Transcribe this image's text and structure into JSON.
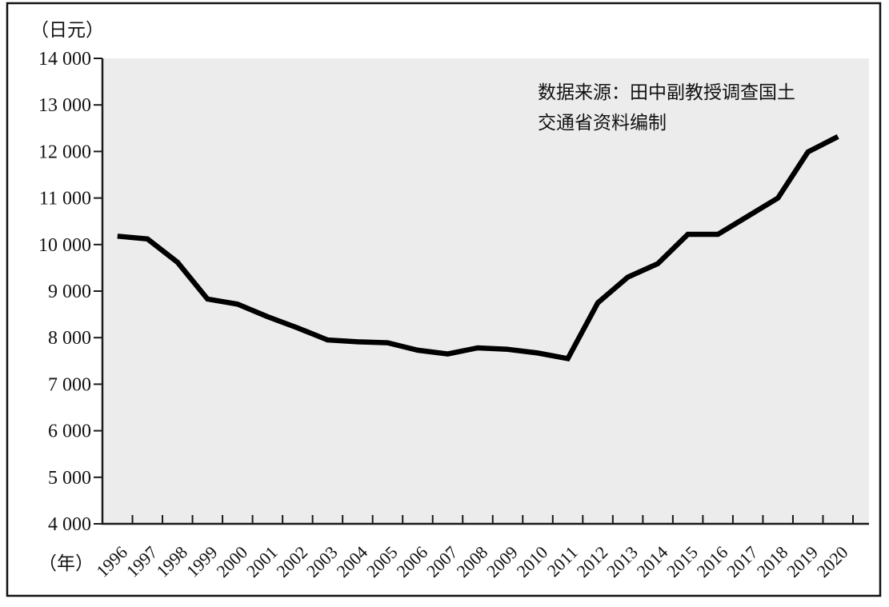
{
  "chart_data": {
    "type": "line",
    "title": "",
    "y_unit_label": "（日元）",
    "x_unit_label": "（年）",
    "annotation": {
      "line1": "数据来源：田中副教授调查国土",
      "line2": "交通省资料编制"
    },
    "categories": [
      "1996",
      "1997",
      "1998",
      "1999",
      "2000",
      "2001",
      "2002",
      "2003",
      "2004",
      "2005",
      "2006",
      "2007",
      "2008",
      "2009",
      "2010",
      "2011",
      "2012",
      "2013",
      "2014",
      "2015",
      "2016",
      "2017",
      "2018",
      "2019",
      "2020"
    ],
    "series": [
      {
        "name": "land-price-line",
        "values": [
          10180,
          10120,
          9620,
          8830,
          8720,
          8450,
          8210,
          7950,
          7910,
          7890,
          7730,
          7650,
          7780,
          7750,
          7670,
          7550,
          8750,
          9300,
          9590,
          10220,
          10220,
          10610,
          11000,
          11990,
          12320
        ]
      }
    ],
    "ylim": [
      4000,
      14000
    ],
    "y_ticks": [
      14000,
      13000,
      12000,
      11000,
      10000,
      9000,
      8000,
      7000,
      6000,
      5000,
      4000
    ],
    "y_tick_labels": [
      "14 000",
      "13 000",
      "12 000",
      "11 000",
      "10 000",
      "9 000",
      "8 000",
      "7 000",
      "6 000",
      "5 000",
      "4 000"
    ],
    "xlabel": "",
    "ylabel": "",
    "grid": false,
    "legend": "none",
    "line_color": "#000000",
    "plot_bg_color": "#ececec",
    "axis_color": "#1a1a1a"
  }
}
